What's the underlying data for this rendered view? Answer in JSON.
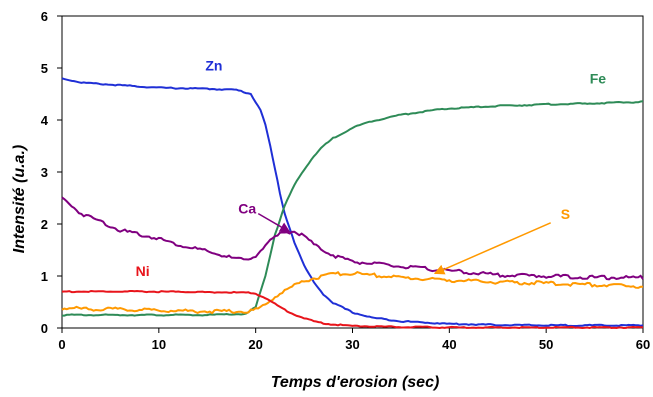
{
  "chart_data": {
    "type": "line",
    "xlabel": "Temps d'erosion (sec)",
    "ylabel": "Intensité (u.a.)",
    "xlim": [
      0,
      60
    ],
    "ylim": [
      0,
      6
    ],
    "x_ticks": [
      "0",
      "10",
      "20",
      "30",
      "40",
      "50",
      "60"
    ],
    "y_ticks": [
      "0",
      "1",
      "2",
      "3",
      "4",
      "5",
      "6"
    ],
    "grid": false,
    "legend": "none",
    "series": [
      {
        "name": "Zn",
        "color": "#1f2fd6",
        "x": [
          0,
          2,
          5,
          10,
          15,
          18,
          19.5,
          20.5,
          21,
          21.5,
          22,
          22.5,
          23,
          24,
          25,
          26,
          27,
          28,
          30,
          32,
          35,
          40,
          45,
          50,
          55,
          60
        ],
        "y": [
          4.8,
          4.72,
          4.68,
          4.62,
          4.6,
          4.58,
          4.5,
          4.2,
          3.9,
          3.5,
          3.05,
          2.6,
          2.2,
          1.65,
          1.2,
          0.88,
          0.65,
          0.48,
          0.3,
          0.2,
          0.13,
          0.08,
          0.06,
          0.05,
          0.05,
          0.05
        ]
      },
      {
        "name": "Fe",
        "color": "#2e8b57",
        "x": [
          0,
          5,
          10,
          15,
          19,
          20,
          21,
          22,
          23,
          24,
          25,
          26,
          27,
          28,
          30,
          32,
          35,
          38,
          40,
          45,
          50,
          55,
          60
        ],
        "y": [
          0.25,
          0.25,
          0.25,
          0.25,
          0.27,
          0.4,
          1.0,
          1.8,
          2.35,
          2.75,
          3.05,
          3.3,
          3.5,
          3.65,
          3.85,
          3.98,
          4.1,
          4.18,
          4.22,
          4.27,
          4.3,
          4.32,
          4.35
        ]
      },
      {
        "name": "Ca",
        "color": "#800080",
        "x": [
          0,
          2,
          4,
          6,
          8,
          10,
          12,
          14,
          16,
          18,
          19,
          20,
          21,
          22,
          23,
          24,
          25,
          26,
          28,
          30,
          35,
          40,
          45,
          50,
          55,
          60
        ],
        "y": [
          2.5,
          2.2,
          2.05,
          1.88,
          1.8,
          1.72,
          1.6,
          1.52,
          1.42,
          1.33,
          1.3,
          1.4,
          1.58,
          1.75,
          1.85,
          1.85,
          1.78,
          1.6,
          1.4,
          1.28,
          1.18,
          1.1,
          1.02,
          1.0,
          0.97,
          0.97
        ]
      },
      {
        "name": "S",
        "color": "#ff9900",
        "x": [
          0,
          5,
          10,
          15,
          19,
          20,
          21,
          22,
          23,
          24,
          25,
          26,
          27,
          28,
          29,
          30,
          32,
          35,
          40,
          45,
          50,
          55,
          60
        ],
        "y": [
          0.38,
          0.36,
          0.34,
          0.32,
          0.32,
          0.35,
          0.45,
          0.6,
          0.72,
          0.82,
          0.9,
          0.96,
          1.0,
          1.03,
          1.05,
          1.05,
          1.02,
          0.97,
          0.92,
          0.88,
          0.86,
          0.83,
          0.8
        ]
      },
      {
        "name": "Ni",
        "color": "#e8141b",
        "x": [
          0,
          5,
          10,
          15,
          19,
          20,
          21,
          22,
          23,
          24,
          25,
          26,
          27,
          28,
          30,
          35,
          40,
          45,
          50,
          55,
          60
        ],
        "y": [
          0.7,
          0.7,
          0.7,
          0.69,
          0.68,
          0.66,
          0.58,
          0.46,
          0.35,
          0.26,
          0.19,
          0.13,
          0.09,
          0.07,
          0.04,
          0.02,
          0.01,
          0.01,
          0.01,
          0.01,
          0.01
        ]
      }
    ],
    "annotations": [
      {
        "text": "Zn",
        "color": "#1f2fd6",
        "x": 14.8,
        "y": 4.95,
        "arrow": false
      },
      {
        "text": "Fe",
        "color": "#2e8b57",
        "x": 54.5,
        "y": 4.7,
        "arrow": false
      },
      {
        "text": "Ca",
        "color": "#800080",
        "x": 18.2,
        "y": 2.2,
        "arrow": true,
        "arrow_to": [
          23.5,
          1.85
        ]
      },
      {
        "text": "S",
        "color": "#ff9900",
        "x": 51.5,
        "y": 2.1,
        "arrow": true,
        "arrow_to": [
          38.5,
          1.05
        ]
      },
      {
        "text": "Ni",
        "color": "#e8141b",
        "x": 7.6,
        "y": 1.0,
        "arrow": false
      }
    ]
  }
}
